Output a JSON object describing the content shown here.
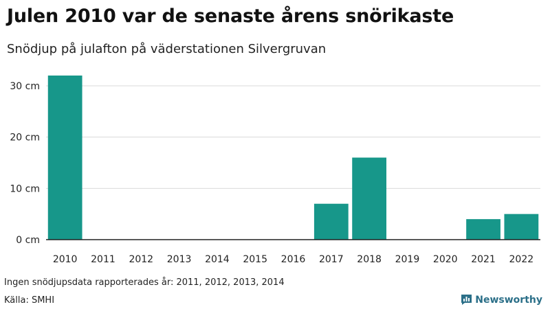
{
  "chart_data": {
    "type": "bar",
    "title": "Julen 2010 var de senaste årens snörikaste",
    "subtitle": "Snödjup på julafton på väderstationen Silvergruvan",
    "categories": [
      "2010",
      "2011",
      "2012",
      "2013",
      "2014",
      "2015",
      "2016",
      "2017",
      "2018",
      "2019",
      "2020",
      "2021",
      "2022"
    ],
    "values": [
      32,
      null,
      null,
      null,
      null,
      0,
      0,
      7,
      16,
      0,
      0,
      4,
      5
    ],
    "xlabel": "",
    "ylabel": "",
    "ylim": [
      0,
      32
    ],
    "yticks": [
      0,
      10,
      20,
      30
    ],
    "ytick_labels": [
      "0 cm",
      "10 cm",
      "20 cm",
      "30 cm"
    ],
    "grid": true,
    "bar_color": "#17978a"
  },
  "footer": {
    "note": "Ingen snödjupsdata rapporterades år: 2011, 2012, 2013, 2014",
    "source": "Källa: SMHI",
    "brand": "Newsworthy",
    "brand_color": "#2b6f88",
    "brand_icon": "bar-chart-speech-icon"
  }
}
